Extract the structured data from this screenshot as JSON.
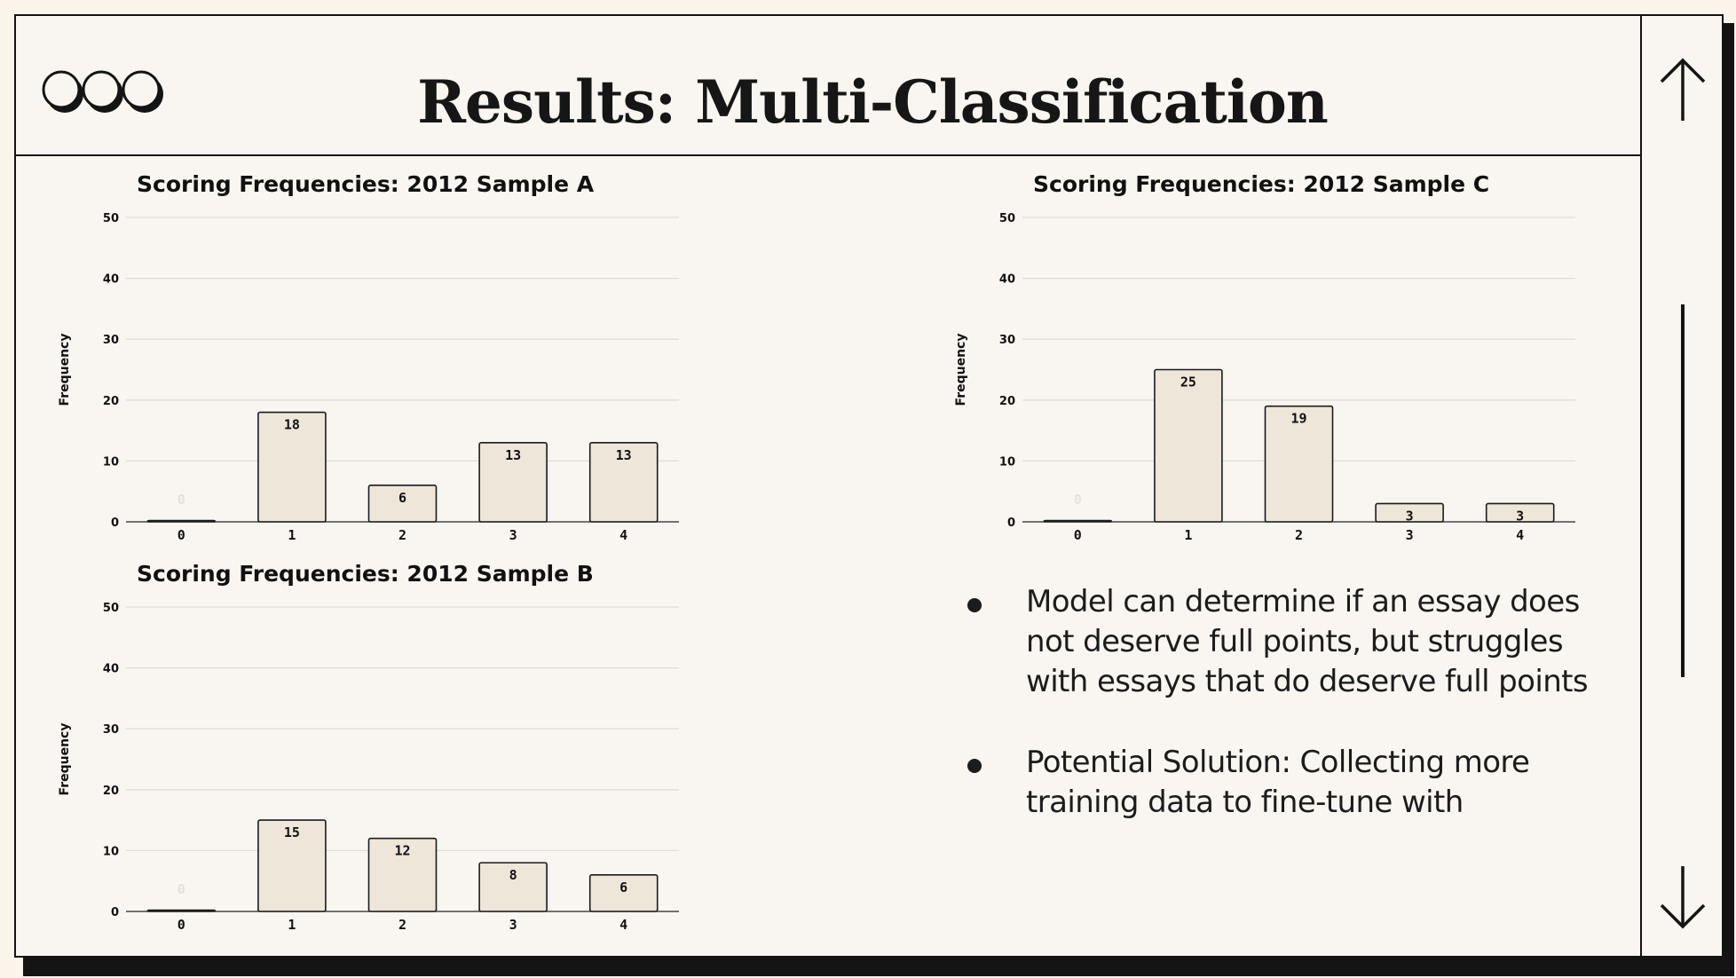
{
  "slide": {
    "title": "Results: Multi-Classification"
  },
  "bullets": [
    "Model can determine if an essay does not deserve full points, but struggles with essays that do deserve full points",
    "Potential Solution: Collecting more training data to fine-tune with"
  ],
  "colors": {
    "bar_fill": "#ede6d9",
    "bar_stroke": "#1a1a1a",
    "grid": "#dcdcdc",
    "background": "#f9f6f1"
  },
  "icons": [
    "three-circles-logo-icon",
    "arrow-up-icon",
    "arrow-down-icon"
  ],
  "chart_data": [
    {
      "type": "bar",
      "title": "Scoring Frequencies: 2012 Sample A",
      "ylabel": "Frequency",
      "xlabel": "",
      "categories": [
        "0",
        "1",
        "2",
        "3",
        "4"
      ],
      "values": [
        0,
        18,
        6,
        13,
        13
      ],
      "ylim": [
        0,
        50
      ],
      "yticks": [
        0,
        10,
        20,
        30,
        40,
        50
      ],
      "grid": true
    },
    {
      "type": "bar",
      "title": "Scoring Frequencies: 2012 Sample B",
      "ylabel": "Frequency",
      "xlabel": "",
      "categories": [
        "0",
        "1",
        "2",
        "3",
        "4"
      ],
      "values": [
        0,
        15,
        12,
        8,
        6
      ],
      "ylim": [
        0,
        50
      ],
      "yticks": [
        0,
        10,
        20,
        30,
        40,
        50
      ],
      "grid": true
    },
    {
      "type": "bar",
      "title": "Scoring Frequencies: 2012 Sample C",
      "ylabel": "Frequency",
      "xlabel": "",
      "categories": [
        "0",
        "1",
        "2",
        "3",
        "4"
      ],
      "values": [
        0,
        25,
        19,
        3,
        3
      ],
      "ylim": [
        0,
        50
      ],
      "yticks": [
        0,
        10,
        20,
        30,
        40,
        50
      ],
      "grid": true
    }
  ]
}
